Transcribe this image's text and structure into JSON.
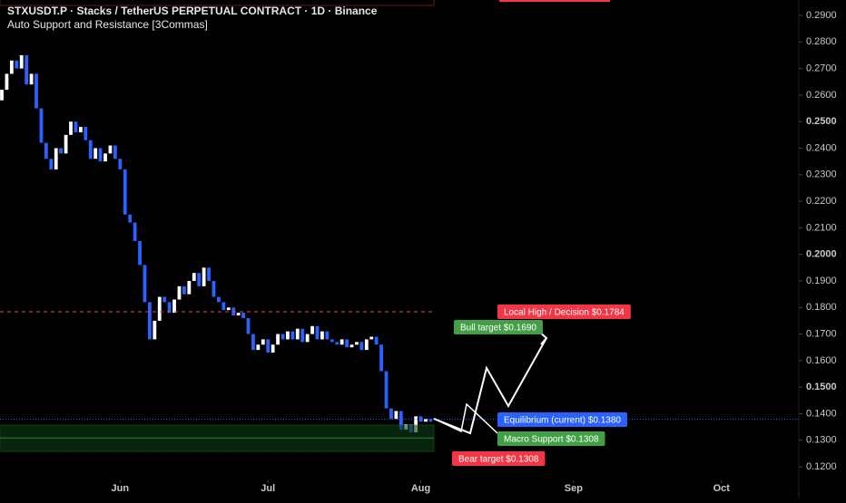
{
  "chart_data": {
    "type": "candlestick",
    "title": "STXUSDT.P · Stacks / TetherUS PERPETUAL CONTRACT · 1D · Binance",
    "subtitle": "Auto Support and Resistance [3Commas]",
    "up_color": "#ffffff",
    "down_color": "#2962ff",
    "open": [
      0.258,
      0.262,
      0.268,
      0.273,
      0.27,
      0.275,
      0.264,
      0.268,
      0.255,
      0.242,
      0.236,
      0.232,
      0.24,
      0.238,
      0.245,
      0.25,
      0.246,
      0.248,
      0.243,
      0.236,
      0.24,
      0.235,
      0.238,
      0.241,
      0.236,
      0.232,
      0.215,
      0.212,
      0.205,
      0.196,
      0.182,
      0.168,
      0.175,
      0.184,
      0.182,
      0.178,
      0.183,
      0.188,
      0.185,
      0.19,
      0.193,
      0.188,
      0.195,
      0.19,
      0.184,
      0.182,
      0.179,
      0.18,
      0.177,
      0.178,
      0.176,
      0.17,
      0.164,
      0.166,
      0.168,
      0.163,
      0.166,
      0.17,
      0.168,
      0.171,
      0.168,
      0.172,
      0.167,
      0.17,
      0.173,
      0.168,
      0.171,
      0.168,
      0.167,
      0.166,
      0.168,
      0.165,
      0.166,
      0.167,
      0.164,
      0.168,
      0.169,
      0.166,
      0.156,
      0.142,
      0.138,
      0.141,
      0.134,
      0.136,
      0.133,
      0.139,
      0.137,
      0.138
    ],
    "close": [
      0.262,
      0.268,
      0.273,
      0.27,
      0.275,
      0.264,
      0.268,
      0.255,
      0.242,
      0.236,
      0.232,
      0.24,
      0.238,
      0.245,
      0.25,
      0.246,
      0.248,
      0.243,
      0.236,
      0.24,
      0.235,
      0.238,
      0.241,
      0.236,
      0.232,
      0.215,
      0.212,
      0.205,
      0.196,
      0.182,
      0.168,
      0.175,
      0.184,
      0.182,
      0.178,
      0.183,
      0.188,
      0.185,
      0.19,
      0.193,
      0.188,
      0.195,
      0.19,
      0.184,
      0.182,
      0.179,
      0.18,
      0.177,
      0.178,
      0.176,
      0.17,
      0.164,
      0.166,
      0.168,
      0.163,
      0.166,
      0.17,
      0.168,
      0.171,
      0.168,
      0.172,
      0.167,
      0.17,
      0.173,
      0.168,
      0.171,
      0.168,
      0.167,
      0.166,
      0.168,
      0.165,
      0.166,
      0.167,
      0.164,
      0.168,
      0.169,
      0.166,
      0.156,
      0.142,
      0.138,
      0.141,
      0.134,
      0.136,
      0.133,
      0.139,
      0.137,
      0.138,
      0.137
    ],
    "xlim": [
      -0.37,
      161.7
    ],
    "xticks": [
      {
        "value": 24,
        "label": "Jun"
      },
      {
        "value": 54,
        "label": "Jul"
      },
      {
        "value": 85,
        "label": "Aug"
      },
      {
        "value": 116,
        "label": "Sep"
      },
      {
        "value": 146,
        "label": "Oct"
      }
    ],
    "ylim": [
      0.1149,
      0.2958
    ],
    "yticks": [
      {
        "value": 0.12,
        "label": "0.1200"
      },
      {
        "value": 0.13,
        "label": "0.1300"
      },
      {
        "value": 0.14,
        "label": "0.1400"
      },
      {
        "value": 0.15,
        "label": "0.1500"
      },
      {
        "value": 0.16,
        "label": "0.1600"
      },
      {
        "value": 0.17,
        "label": "0.1700"
      },
      {
        "value": 0.18,
        "label": "0.1800"
      },
      {
        "value": 0.19,
        "label": "0.1900"
      },
      {
        "value": 0.2,
        "label": "0.2000"
      },
      {
        "value": 0.21,
        "label": "0.2100"
      },
      {
        "value": 0.22,
        "label": "0.2200"
      },
      {
        "value": 0.23,
        "label": "0.2300"
      },
      {
        "value": 0.24,
        "label": "0.2400"
      },
      {
        "value": 0.25,
        "label": "0.2500"
      },
      {
        "value": 0.26,
        "label": "0.2600"
      },
      {
        "value": 0.27,
        "label": "0.2700"
      },
      {
        "value": 0.28,
        "label": "0.2800"
      },
      {
        "value": 0.29,
        "label": "0.2900"
      }
    ],
    "levels": [
      {
        "name": "Local High / Decision $0.1784",
        "value": 0.1784,
        "color": "#f23645"
      },
      {
        "name": "Bull target $0.1690",
        "value": 0.169,
        "color": "#43a047"
      },
      {
        "name": "Equilibrium (current) $0.1380",
        "value": 0.138,
        "color": "#2962ff"
      },
      {
        "name": "Macro Support $0.1308",
        "value": 0.1308,
        "color": "#43a047"
      },
      {
        "name": "Bear target $0.1308",
        "value": 0.1308,
        "color": "#f23645"
      }
    ]
  }
}
